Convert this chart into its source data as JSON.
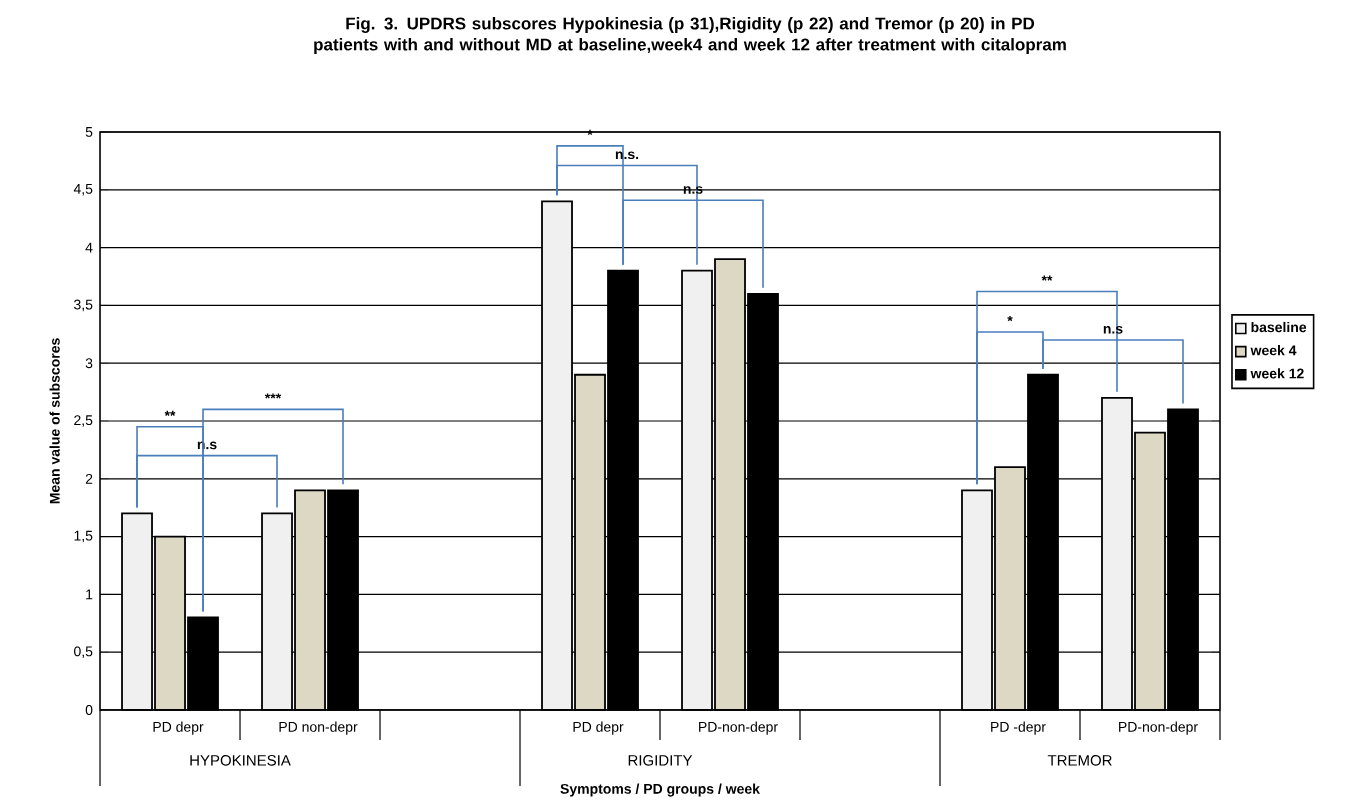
{
  "chart_data": {
    "type": "bar",
    "title": "Fig. 3. UPDRS subscores Hypokinesia (p 31),Rigidity (p 22) and Tremor (p 20) in PD patients with and without MD at baseline,week4 and week 12 after treatment with citalopram",
    "xlabel": "Symptoms / PD groups / week",
    "ylabel": "Mean value of subscores",
    "categories": [
      "PD depr",
      "PD non-depr",
      null,
      "PD depr",
      "PD-non-depr",
      null,
      "PD -depr",
      "PD-non-depr"
    ],
    "series": [
      {
        "name": "baseline",
        "color": "#f0f0f0",
        "values": [
          1.7,
          1.7,
          null,
          4.4,
          3.8,
          null,
          1.9,
          2.7
        ]
      },
      {
        "name": "week 4",
        "color": "#ddd8c4",
        "values": [
          1.5,
          1.9,
          null,
          2.9,
          3.9,
          null,
          2.1,
          2.4
        ]
      },
      {
        "name": "week 12",
        "color": "#000000",
        "values": [
          0.8,
          1.9,
          null,
          3.8,
          3.6,
          null,
          2.9,
          2.6
        ]
      }
    ],
    "ylim": [
      0,
      5
    ],
    "yticks": [
      0,
      {
        "value": 0.5,
        "label": "0,5"
      },
      1,
      {
        "value": 1.5,
        "label": "1,5"
      },
      2,
      {
        "value": 2.5,
        "label": "2,5"
      },
      3,
      {
        "value": 3.5,
        "label": "3,5"
      },
      4,
      {
        "value": 4.5,
        "label": "4,5"
      },
      5
    ],
    "grid": "y",
    "legend": "right",
    "annotations": [
      "**",
      "n.s",
      "***",
      "*",
      "n.s.",
      "n.s",
      "**",
      "*",
      "n.s",
      "HYPOKINESIA",
      "RIGIDITY",
      "TREMOR"
    ]
  }
}
